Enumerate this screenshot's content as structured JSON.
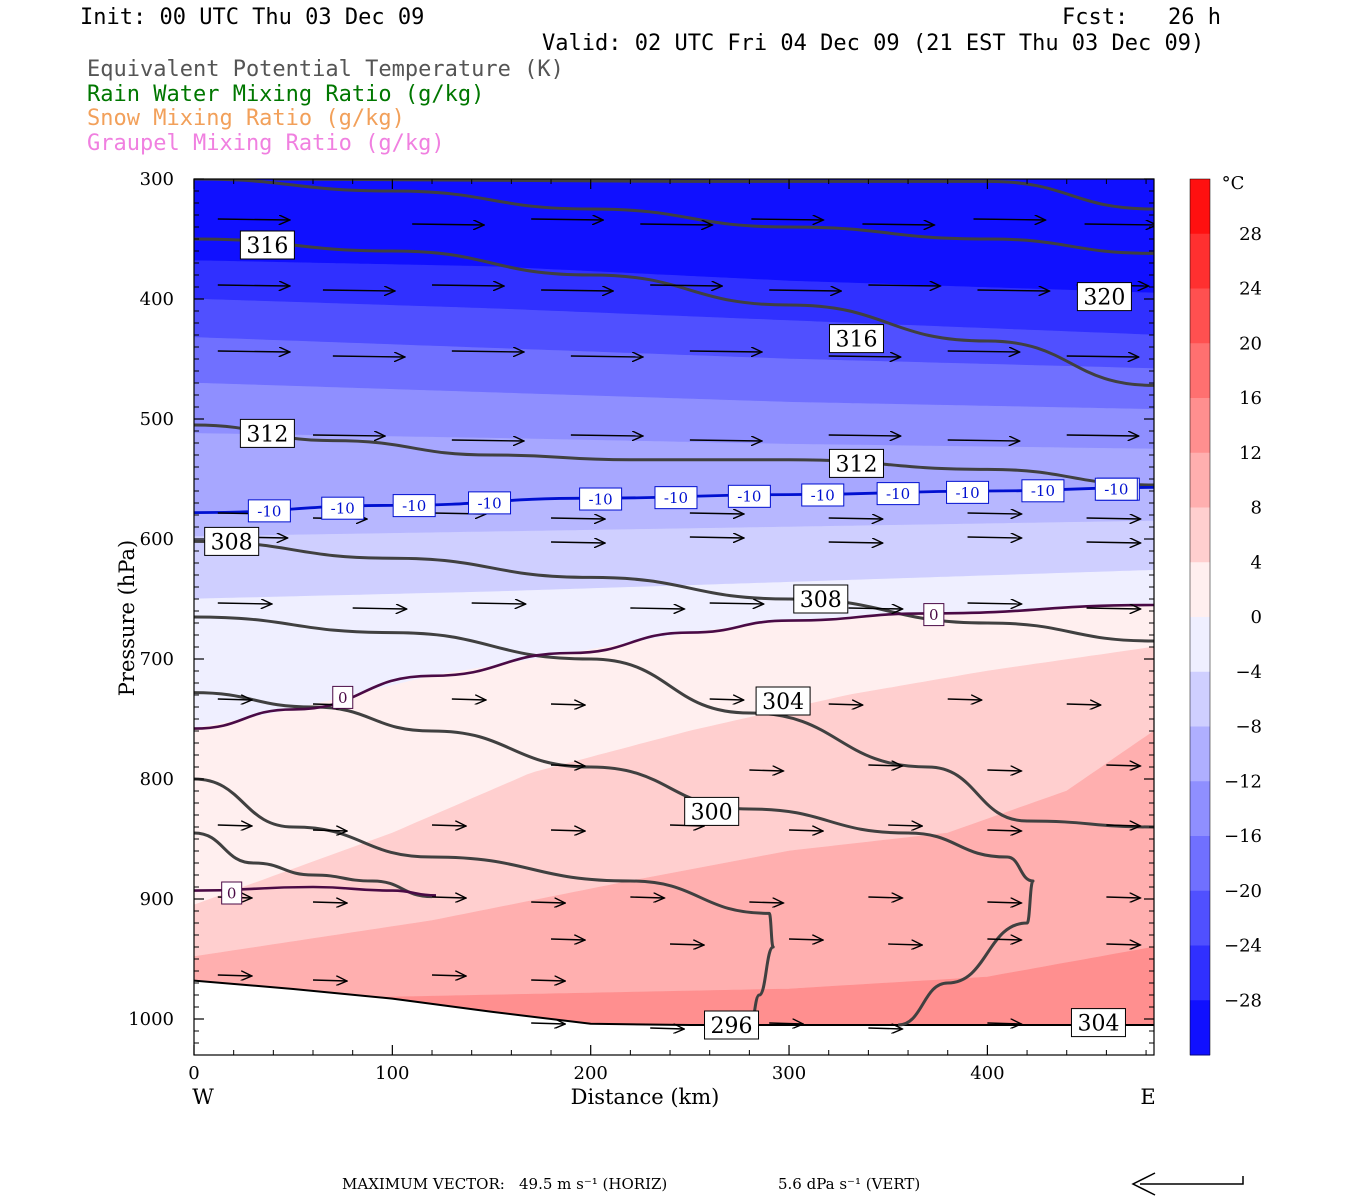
{
  "header": {
    "init": "Init: 00 UTC Thu 03 Dec 09",
    "fcst": "Fcst:   26 h",
    "valid": "Valid: 02 UTC Fri 04 Dec 09 (21 EST Thu 03 Dec 09)",
    "fields": [
      {
        "text": "Equivalent Potential Temperature (K)",
        "color": "#555555"
      },
      {
        "text": "Rain Water Mixing Ratio (g/kg)",
        "color": "#007700"
      },
      {
        "text": "Snow Mixing Ratio (g/kg)",
        "color": "#f2a05a"
      },
      {
        "text": "Graupel Mixing Ratio (g/kg)",
        "color": "#f080e0"
      }
    ]
  },
  "footer": {
    "max_vector_label": "MAXIMUM VECTOR:",
    "horiz": "49.5 m s⁻¹ (HORIZ)",
    "vert": "5.6 dPa s⁻¹ (VERT)"
  },
  "chart_data": {
    "type": "heatmap",
    "title": "",
    "xlabel": "Distance (km)",
    "ylabel": "Pressure (hPa)",
    "xlim": [
      0,
      484
    ],
    "ylim": [
      1030,
      300
    ],
    "x_ticks": [
      0,
      100,
      200,
      300,
      400
    ],
    "y_ticks": [
      300,
      400,
      500,
      600,
      700,
      800,
      900,
      1000
    ],
    "x_end_labels": {
      "left": "W",
      "right": "E"
    },
    "colorbar": {
      "unit": "°C",
      "min": -32,
      "max": 32,
      "step": 4,
      "tick_labels": [
        28,
        24,
        20,
        16,
        12,
        8,
        4,
        0,
        -4,
        -8,
        -12,
        -16,
        -20,
        -24,
        -28
      ],
      "warm_color": "#ff0000",
      "cold_color": "#0000ff",
      "neutral_color": "#ffffff"
    },
    "isotherms": [
      {
        "t": -32,
        "pts": [
          [
            0,
            300
          ],
          [
            484,
            300
          ]
        ]
      },
      {
        "t": -28,
        "pts": [
          [
            0,
            368
          ],
          [
            150,
            373
          ],
          [
            300,
            385
          ],
          [
            484,
            395
          ]
        ]
      },
      {
        "t": -24,
        "pts": [
          [
            0,
            400
          ],
          [
            150,
            408
          ],
          [
            300,
            418
          ],
          [
            484,
            430
          ]
        ]
      },
      {
        "t": -20,
        "pts": [
          [
            0,
            432
          ],
          [
            150,
            441
          ],
          [
            300,
            450
          ],
          [
            484,
            458
          ]
        ]
      },
      {
        "t": -16,
        "pts": [
          [
            0,
            470
          ],
          [
            150,
            478
          ],
          [
            300,
            486
          ],
          [
            484,
            492
          ]
        ]
      },
      {
        "t": -12,
        "pts": [
          [
            0,
            512
          ],
          [
            150,
            516
          ],
          [
            300,
            521
          ],
          [
            484,
            525
          ]
        ]
      },
      {
        "t": -10,
        "pts": [
          [
            0,
            578
          ],
          [
            100,
            572
          ],
          [
            200,
            566
          ],
          [
            300,
            563
          ],
          [
            400,
            560
          ],
          [
            484,
            557
          ]
        ]
      },
      {
        "t": -8,
        "pts": [
          [
            0,
            598
          ],
          [
            150,
            594
          ],
          [
            300,
            590
          ],
          [
            484,
            585
          ]
        ]
      },
      {
        "t": -4,
        "pts": [
          [
            0,
            650
          ],
          [
            150,
            644
          ],
          [
            300,
            636
          ],
          [
            484,
            626
          ]
        ]
      },
      {
        "t": 0,
        "pts": [
          [
            0,
            758
          ],
          [
            50,
            742
          ],
          [
            120,
            714
          ],
          [
            190,
            695
          ],
          [
            250,
            678
          ],
          [
            300,
            668
          ],
          [
            370,
            662
          ],
          [
            484,
            655
          ]
        ]
      },
      {
        "t": 4,
        "pts": [
          [
            0,
            905
          ],
          [
            100,
            845
          ],
          [
            170,
            795
          ],
          [
            250,
            760
          ],
          [
            330,
            730
          ],
          [
            400,
            710
          ],
          [
            484,
            690
          ]
        ]
      },
      {
        "t": 8,
        "pts": [
          [
            0,
            948
          ],
          [
            120,
            918
          ],
          [
            220,
            885
          ],
          [
            300,
            860
          ],
          [
            380,
            845
          ],
          [
            440,
            810
          ],
          [
            484,
            760
          ]
        ]
      },
      {
        "t": 12,
        "pts": [
          [
            0,
            985
          ],
          [
            150,
            980
          ],
          [
            300,
            975
          ],
          [
            400,
            965
          ],
          [
            484,
            940
          ]
        ]
      },
      {
        "t": 16,
        "pts": [
          [
            0,
            1030
          ],
          [
            484,
            1030
          ]
        ]
      }
    ],
    "theta_e": [
      {
        "level": 324,
        "pts": [
          [
            40,
            300
          ],
          [
            250,
            302
          ],
          [
            400,
            302
          ],
          [
            484,
            325
          ]
        ]
      },
      {
        "level": 320,
        "pts": [
          [
            0,
            300
          ],
          [
            100,
            310
          ],
          [
            200,
            325
          ],
          [
            300,
            340
          ],
          [
            400,
            350
          ],
          [
            484,
            362
          ]
        ]
      },
      {
        "level": 316,
        "pts": [
          [
            0,
            350
          ],
          [
            100,
            360
          ],
          [
            200,
            380
          ],
          [
            300,
            405
          ],
          [
            400,
            435
          ],
          [
            484,
            472
          ]
        ]
      },
      {
        "level": 312,
        "pts": [
          [
            0,
            505
          ],
          [
            70,
            518
          ],
          [
            150,
            530
          ],
          [
            220,
            534
          ],
          [
            300,
            534
          ],
          [
            400,
            542
          ],
          [
            484,
            555
          ]
        ]
      },
      {
        "level": 308,
        "pts": [
          [
            0,
            602
          ],
          [
            100,
            616
          ],
          [
            200,
            632
          ],
          [
            300,
            650
          ],
          [
            400,
            670
          ],
          [
            484,
            685
          ]
        ]
      },
      {
        "level": 304,
        "pts": [
          [
            0,
            665
          ],
          [
            100,
            678
          ],
          [
            200,
            700
          ],
          [
            280,
            745
          ],
          [
            370,
            790
          ],
          [
            420,
            835
          ],
          [
            484,
            840
          ]
        ]
      },
      {
        "level": 300,
        "pts": [
          [
            0,
            728
          ],
          [
            60,
            740
          ],
          [
            120,
            760
          ],
          [
            200,
            790
          ],
          [
            280,
            825
          ],
          [
            360,
            845
          ],
          [
            410,
            865
          ],
          [
            423,
            885
          ],
          [
            420,
            920
          ],
          [
            380,
            970
          ],
          [
            355,
            1005
          ]
        ]
      },
      {
        "level": 296,
        "pts": [
          [
            0,
            800
          ],
          [
            50,
            840
          ],
          [
            120,
            865
          ],
          [
            220,
            885
          ],
          [
            290,
            912
          ],
          [
            292,
            940
          ],
          [
            285,
            980
          ],
          [
            280,
            1010
          ]
        ]
      },
      {
        "level": 292,
        "pts": [
          [
            0,
            845
          ],
          [
            30,
            870
          ],
          [
            60,
            880
          ],
          [
            90,
            885
          ],
          [
            120,
            898
          ]
        ]
      }
    ],
    "theta_e_labels": [
      {
        "text": "316",
        "x": 37,
        "p": 355
      },
      {
        "text": "316",
        "x": 334,
        "p": 433
      },
      {
        "text": "320",
        "x": 459,
        "p": 398
      },
      {
        "text": "312",
        "x": 37,
        "p": 512
      },
      {
        "text": "312",
        "x": 334,
        "p": 537
      },
      {
        "text": "308",
        "x": 19,
        "p": 602
      },
      {
        "text": "308",
        "x": 316,
        "p": 650
      },
      {
        "text": "304",
        "x": 297,
        "p": 735
      },
      {
        "text": "300",
        "x": 261,
        "p": 827
      },
      {
        "text": "296",
        "x": 271,
        "p": 1005
      },
      {
        "text": "304",
        "x": 456,
        "p": 1003
      }
    ],
    "zero_isotherm_labels": [
      {
        "text": "0",
        "x": 75,
        "p": 732
      },
      {
        "text": "0",
        "x": 373,
        "p": 663
      },
      {
        "text": "0",
        "x": 19,
        "p": 895
      }
    ],
    "zero_low_branch": [
      [
        0,
        893
      ],
      [
        60,
        890
      ],
      [
        100,
        893
      ],
      [
        122,
        897
      ]
    ],
    "minus10_labels": [
      "-10",
      "-10",
      "-10",
      "-10",
      "-10",
      "-10",
      "-10",
      "-10",
      "-10",
      "-10",
      "-10",
      "-10",
      "-10"
    ],
    "minus10_label_x": [
      38,
      75,
      111,
      149,
      205,
      243,
      280,
      317,
      355,
      390,
      428,
      466,
      465
    ],
    "wind_arrow_rows": [
      {
        "p": 335,
        "xs": [
          12,
          110,
          170,
          225,
          281,
          337,
          393,
          449
        ]
      },
      {
        "p": 390,
        "xs": [
          12,
          65,
          120,
          175,
          230,
          290,
          340,
          395,
          445
        ]
      },
      {
        "p": 445,
        "xs": [
          12,
          70,
          130,
          190,
          250,
          320,
          380,
          440
        ]
      },
      {
        "p": 515,
        "xs": [
          60,
          130,
          190,
          250,
          320,
          380,
          440
        ]
      },
      {
        "p": 580,
        "xs": [
          12,
          60,
          120,
          180,
          250,
          320,
          390,
          450
        ]
      },
      {
        "p": 600,
        "xs": [
          20,
          180,
          250,
          320,
          390,
          450
        ]
      },
      {
        "p": 655,
        "xs": [
          12,
          80,
          140,
          220,
          260,
          330,
          390,
          450
        ]
      },
      {
        "p": 735,
        "xs": [
          12,
          60,
          130,
          180,
          260,
          320,
          380,
          440
        ]
      },
      {
        "p": 790,
        "xs": [
          180,
          280,
          340,
          400,
          460
        ]
      },
      {
        "p": 840,
        "xs": [
          12,
          60,
          120,
          180,
          240,
          300,
          350,
          400,
          460
        ]
      },
      {
        "p": 900,
        "xs": [
          12,
          60,
          120,
          170,
          220,
          280,
          340,
          400,
          460
        ]
      },
      {
        "p": 935,
        "xs": [
          180,
          240,
          300,
          350,
          400,
          460
        ]
      },
      {
        "p": 965,
        "xs": [
          12,
          60,
          120,
          170
        ]
      },
      {
        "p": 1005,
        "xs": [
          170,
          230,
          290,
          340,
          400
        ]
      }
    ],
    "ground_surface": [
      [
        0,
        968
      ],
      [
        50,
        975
      ],
      [
        100,
        983
      ],
      [
        150,
        994
      ],
      [
        200,
        1004
      ],
      [
        250,
        1005
      ],
      [
        300,
        1005
      ],
      [
        350,
        1005
      ],
      [
        400,
        1005
      ],
      [
        484,
        1005
      ]
    ]
  }
}
